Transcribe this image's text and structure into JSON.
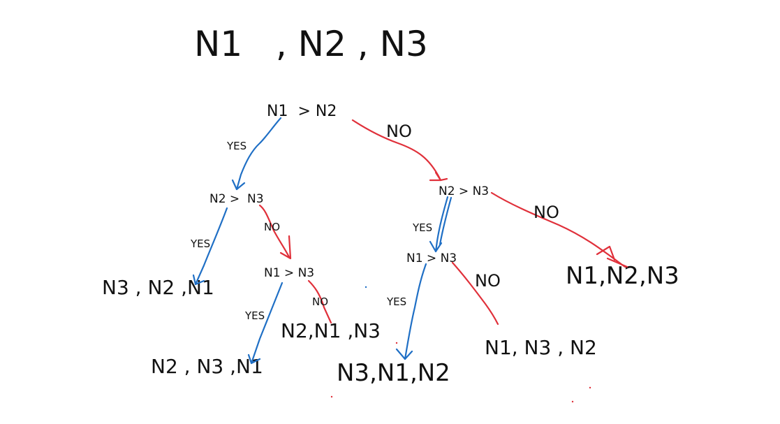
{
  "title": "N1   , N2 , N3",
  "nodes": {
    "root": "N1  > N2",
    "left": "N2 >  N3",
    "right": "N2 > N3",
    "left_right": "N1 > N3",
    "right_left": "N1 > N3"
  },
  "results": {
    "r_n3_n2_n1": "N3 , N2 ,N1",
    "r_n2_n3_n1": "N2 , N3 ,N1",
    "r_n2_n1_n3": "N2,N1 ,N3",
    "r_n3_n1_n2": "N3,N1,N2",
    "r_n1_n3_n2": "N1, N3 , N2",
    "r_n1_n2_n3": "N1,N2,N3"
  },
  "edge_labels": {
    "yes": "YES",
    "no": "NO"
  },
  "colors": {
    "yes_edge": "#1f6fc5",
    "no_edge": "#e0303a",
    "text": "#111111"
  }
}
